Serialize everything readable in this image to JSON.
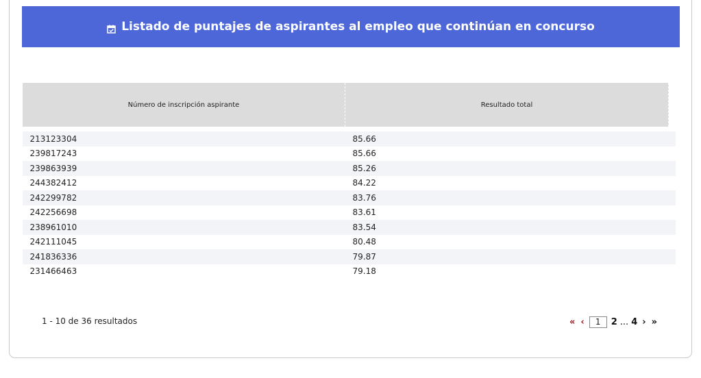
{
  "banner": {
    "title": "Listado de puntajes de aspirantes al empleo que continúan en concurso",
    "icon": "calendar-check-icon"
  },
  "table": {
    "headers": [
      "Número de inscripción aspirante",
      "Resultado total"
    ],
    "rows": [
      [
        "213123304",
        "85.66"
      ],
      [
        "239817243",
        "85.66"
      ],
      [
        "239863939",
        "85.26"
      ],
      [
        "244382412",
        "84.22"
      ],
      [
        "242299782",
        "83.76"
      ],
      [
        "242256698",
        "83.61"
      ],
      [
        "238961010",
        "83.54"
      ],
      [
        "242111045",
        "80.48"
      ],
      [
        "241836336",
        "79.87"
      ],
      [
        "231466463",
        "79.18"
      ]
    ]
  },
  "footer": {
    "results_text": "1 - 10 de 36 resultados"
  },
  "pagination": {
    "first": "«",
    "prev": "‹",
    "current": "1",
    "page2": "2",
    "ellipsis": "...",
    "last_page": "4",
    "next": "›",
    "last": "»"
  },
  "colors": {
    "banner": "#4d67d8",
    "header_bg": "#dcdcdc",
    "stripe": "#f2f4f8",
    "nav_red": "#a01818"
  }
}
